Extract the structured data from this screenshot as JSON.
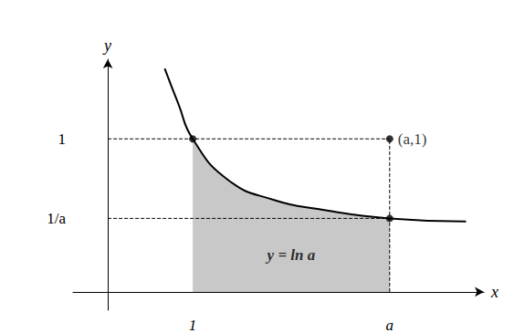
{
  "chart_data": {
    "type": "line",
    "x_label": "x",
    "y_label": "y",
    "x": [
      0.67,
      0.83,
      1,
      1.42,
      1.96,
      2.49,
      3.32,
      4.22
    ],
    "values": [
      1.46,
      1.23,
      1,
      0.73,
      0.6,
      0.54,
      0.48,
      0.46
    ],
    "color": "#000000",
    "shaded": {
      "from": 1,
      "to": 3.32,
      "label": "y = ln a",
      "color": "#c8c8c8"
    },
    "points": [
      {
        "x": 1,
        "y": 1
      },
      {
        "x": 3.32,
        "y": 1,
        "label": "(a,1)"
      },
      {
        "x": 3.32,
        "y": 0.48
      }
    ],
    "dashed_lines": [
      [
        [
          0,
          1
        ],
        [
          3.32,
          1
        ]
      ],
      [
        [
          0,
          0.48
        ],
        [
          3.32,
          0.48
        ]
      ],
      [
        [
          3.32,
          0
        ],
        [
          3.32,
          1
        ]
      ]
    ],
    "xlim": [
      -0.41,
      4.43
    ],
    "xticks": [
      1,
      {
        "value": 3.32,
        "label": "a"
      }
    ],
    "ylim": [
      -0.12,
      1.52
    ],
    "yticks": [
      1,
      {
        "value": 0.48,
        "label": "1/a"
      }
    ],
    "grid": false
  }
}
